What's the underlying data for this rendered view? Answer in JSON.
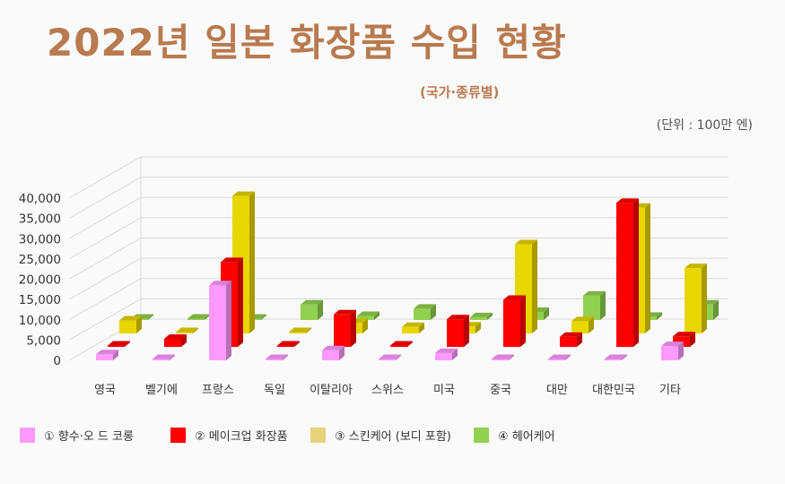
{
  "title": "2022년 일본 화장품 수입 현황",
  "subtitle": "(국가·종류별)",
  "unit": "(단위 : 100만 엔)",
  "colors": {
    "perfume": "#ff99ff",
    "makeup": "#ff0000",
    "skincare": "#e8d600",
    "haircare": "#92d050"
  },
  "chart_data": {
    "type": "bar",
    "categories": [
      "영국",
      "벨기에",
      "프랑스",
      "독일",
      "이탈리아",
      "스위스",
      "미국",
      "중국",
      "대만",
      "대한민국",
      "기타"
    ],
    "series": [
      {
        "name": "① 향수·오 드 코롱",
        "values": [
          1500,
          200,
          18500,
          200,
          2500,
          200,
          1800,
          200,
          200,
          200,
          3500
        ]
      },
      {
        "name": "② 메이크업 화장품",
        "values": [
          300,
          2000,
          20900,
          300,
          8000,
          300,
          6800,
          11600,
          2500,
          35500,
          2600
        ]
      },
      {
        "name": "③ 스킨케어 (보디 포함)",
        "values": [
          3200,
          300,
          33900,
          0,
          2600,
          1600,
          1700,
          22000,
          3000,
          31000,
          16100
        ]
      },
      {
        "name": "④ 헤어케어",
        "values": [
          300,
          0,
          0,
          3800,
          1000,
          2800,
          700,
          2000,
          6000,
          800,
          3800
        ]
      }
    ],
    "ylim": [
      0,
      40000
    ],
    "yticks": [
      "0",
      "5,000",
      "10,000",
      "15,000",
      "20,000",
      "25,000",
      "30,000",
      "35,000",
      "40,000"
    ],
    "grid": true,
    "legend_position": "bottom"
  },
  "legend": [
    {
      "label": "① 향수·오 드 코롱"
    },
    {
      "label": "② 메이크업 화장품"
    },
    {
      "label": "③ 스킨케어 (보디 포함)"
    },
    {
      "label": "④ 헤어케어"
    }
  ]
}
